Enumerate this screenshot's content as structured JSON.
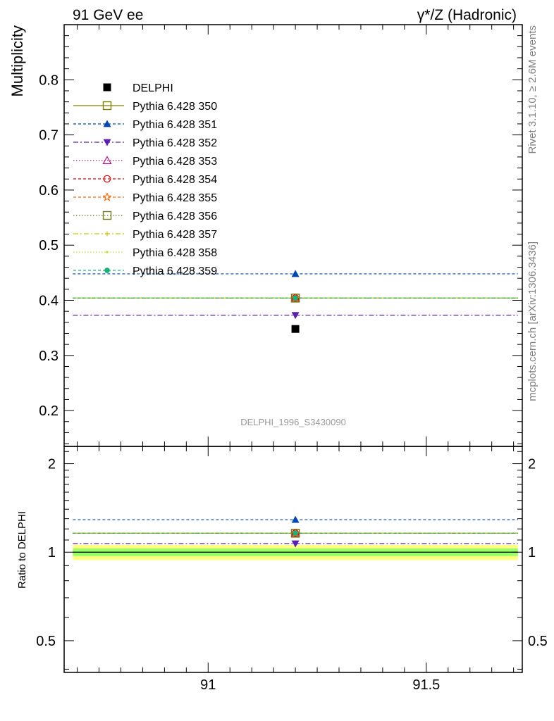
{
  "header": {
    "left_title": "91 GeV ee",
    "right_title": "γ*/Z (Hadronic)"
  },
  "side_labels": {
    "rivet": "Rivet 3.1.10, ≥ 2.6M events",
    "mcplots": "mcplots.cern.ch [arXiv:1306.3436]"
  },
  "watermark": "DELPHI_1996_S3430090",
  "chart_data": [
    {
      "type": "scatter",
      "panel": "main",
      "ylabel": "Multiplicity",
      "xlim": [
        90.67,
        91.72
      ],
      "ylim": [
        0.135,
        0.9
      ],
      "yticks": [
        0.2,
        0.3,
        0.4,
        0.5,
        0.6,
        0.7,
        0.8
      ],
      "ytick_labels": [
        "0.2",
        "0.3",
        "0.4",
        "0.5",
        "0.6",
        "0.7",
        "0.8"
      ],
      "x_center": 91.2,
      "x_range": [
        90.69,
        91.71
      ],
      "legend_position": "upper-left",
      "series": [
        {
          "name": "DELPHI",
          "y": 0.348,
          "color": "#000000",
          "marker": "square-filled",
          "line": "none"
        },
        {
          "name": "Pythia 6.428 350",
          "y": 0.404,
          "color": "#808000",
          "marker": "square-open",
          "line": "solid"
        },
        {
          "name": "Pythia 6.428 351",
          "y": 0.448,
          "color": "#0046b4",
          "marker": "triangle-up-filled",
          "line": "dashed"
        },
        {
          "name": "Pythia 6.428 352",
          "y": 0.373,
          "color": "#5a1eb4",
          "marker": "triangle-down-filled",
          "line": "dashdot"
        },
        {
          "name": "Pythia 6.428 353",
          "y": 0.404,
          "color": "#b4148c",
          "marker": "triangle-up-open",
          "line": "dotted"
        },
        {
          "name": "Pythia 6.428 354",
          "y": 0.404,
          "color": "#e60000",
          "marker": "circle-open",
          "line": "dashed"
        },
        {
          "name": "Pythia 6.428 355",
          "y": 0.404,
          "color": "#ff6400",
          "marker": "star-open",
          "line": "dashed"
        },
        {
          "name": "Pythia 6.428 356",
          "y": 0.404,
          "color": "#78781e",
          "marker": "square-open",
          "line": "dotted"
        },
        {
          "name": "Pythia 6.428 357",
          "y": 0.404,
          "color": "#d2c800",
          "marker": "cross",
          "line": "dashdot"
        },
        {
          "name": "Pythia 6.428 358",
          "y": 0.404,
          "color": "#b4e614",
          "marker": "dot",
          "line": "dotted"
        },
        {
          "name": "Pythia 6.428 359",
          "y": 0.404,
          "color": "#14b478",
          "marker": "circle-filled",
          "line": "dashed"
        }
      ]
    },
    {
      "type": "scatter",
      "panel": "ratio",
      "ylabel": "Ratio to DELPHI",
      "xlim": [
        90.67,
        91.72
      ],
      "ylim": [
        0.39,
        2.29
      ],
      "yscale": "log",
      "yticks": [
        0.5,
        1,
        2
      ],
      "ytick_labels": [
        "0.5",
        "1",
        "2"
      ],
      "xticks": [
        91,
        91.5
      ],
      "xtick_labels": [
        "91",
        "91.5"
      ],
      "band": {
        "inner": [
          0.97,
          1.03
        ],
        "outer": [
          0.94,
          1.06
        ],
        "inner_color": "#99ff66",
        "outer_color": "#ffff80"
      },
      "series": [
        {
          "name": "Pythia 6.428 350",
          "y": 1.16
        },
        {
          "name": "Pythia 6.428 351",
          "y": 1.29
        },
        {
          "name": "Pythia 6.428 352",
          "y": 1.07
        },
        {
          "name": "Pythia 6.428 353",
          "y": 1.16
        },
        {
          "name": "Pythia 6.428 354",
          "y": 1.16
        },
        {
          "name": "Pythia 6.428 355",
          "y": 1.16
        },
        {
          "name": "Pythia 6.428 356",
          "y": 1.16
        },
        {
          "name": "Pythia 6.428 357",
          "y": 1.16
        },
        {
          "name": "Pythia 6.428 358",
          "y": 1.16
        },
        {
          "name": "Pythia 6.428 359",
          "y": 1.16
        }
      ]
    }
  ]
}
